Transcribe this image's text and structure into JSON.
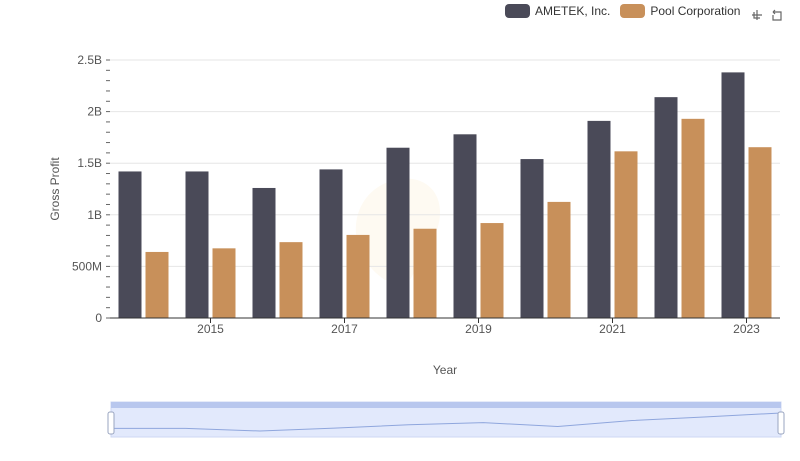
{
  "colors": {
    "series": [
      "#4a4a58",
      "#c8905a"
    ],
    "grid": "#e6e6e6",
    "axis": "#333333",
    "watermark": "#f5a623",
    "zoom_fill": "#d6e1fb",
    "zoom_border": "#b8c7ee",
    "zoom_line": "#8fa6dd"
  },
  "legend": [
    {
      "label": "AMETEK, Inc."
    },
    {
      "label": "Pool Corporation"
    }
  ],
  "toolbox": {
    "zoom_icon": "zoom-select-icon",
    "reset_icon": "zoom-reset-icon"
  },
  "data_zoom": {
    "start": 0,
    "end": 1
  },
  "chart_data": {
    "type": "bar",
    "xlabel": "Year",
    "ylabel": "Gross Profit",
    "categories": [
      "2014",
      "2015",
      "2016",
      "2017",
      "2018",
      "2019",
      "2020",
      "2021",
      "2022",
      "2023"
    ],
    "x_tick_labels": [
      "2015",
      "2017",
      "2019",
      "2021",
      "2023"
    ],
    "y_tick_labels": [
      "0",
      "500M",
      "1B",
      "1.5B",
      "2B",
      "2.5B"
    ],
    "ylim": [
      0,
      2500000000
    ],
    "y_ticks": [
      0,
      500000000,
      1000000000,
      1500000000,
      2000000000,
      2500000000
    ],
    "grid": true,
    "legend_position": "top-right",
    "series": [
      {
        "name": "AMETEK, Inc.",
        "values": [
          1420000000,
          1420000000,
          1260000000,
          1440000000,
          1650000000,
          1780000000,
          1540000000,
          1910000000,
          2140000000,
          2380000000
        ]
      },
      {
        "name": "Pool Corporation",
        "values": [
          640000000,
          675000000,
          735000000,
          805000000,
          865000000,
          920000000,
          1125000000,
          1615000000,
          1930000000,
          1655000000
        ]
      }
    ]
  }
}
